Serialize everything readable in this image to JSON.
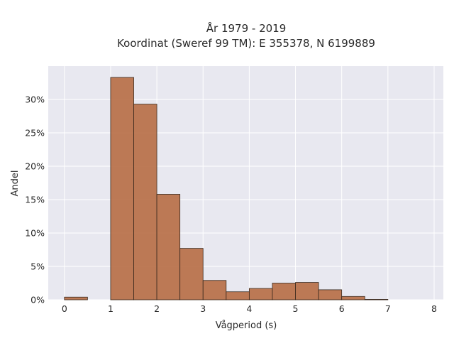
{
  "chart_data": {
    "type": "bar",
    "title_lines": [
      "År 1979 - 2019",
      "Koordinat (Sweref 99 TM): E 355378, N 6199889"
    ],
    "xlabel": "Vågperiod (s)",
    "ylabel": "Andel",
    "bin_width": 0.5,
    "x": [
      0,
      0.5,
      1,
      1.5,
      2,
      2.5,
      3,
      3.5,
      4,
      4.5,
      5,
      5.5,
      6,
      6.5
    ],
    "values": [
      0.4,
      0,
      33.3,
      29.3,
      15.8,
      7.7,
      2.9,
      1.2,
      1.7,
      2.5,
      2.6,
      1.5,
      0.5,
      0.06
    ],
    "xlim": [
      -0.35,
      8.2
    ],
    "ylim": [
      0,
      35
    ],
    "xticks": [
      0,
      1,
      2,
      3,
      4,
      5,
      6,
      7,
      8
    ],
    "yticks": [
      0,
      5,
      10,
      15,
      20,
      25,
      30
    ],
    "ytick_suffix": "%",
    "grid": true,
    "colors": {
      "bar": "#b5693f",
      "edge": "#3a2a1e",
      "plot_bg": "#e8e8f0"
    }
  }
}
